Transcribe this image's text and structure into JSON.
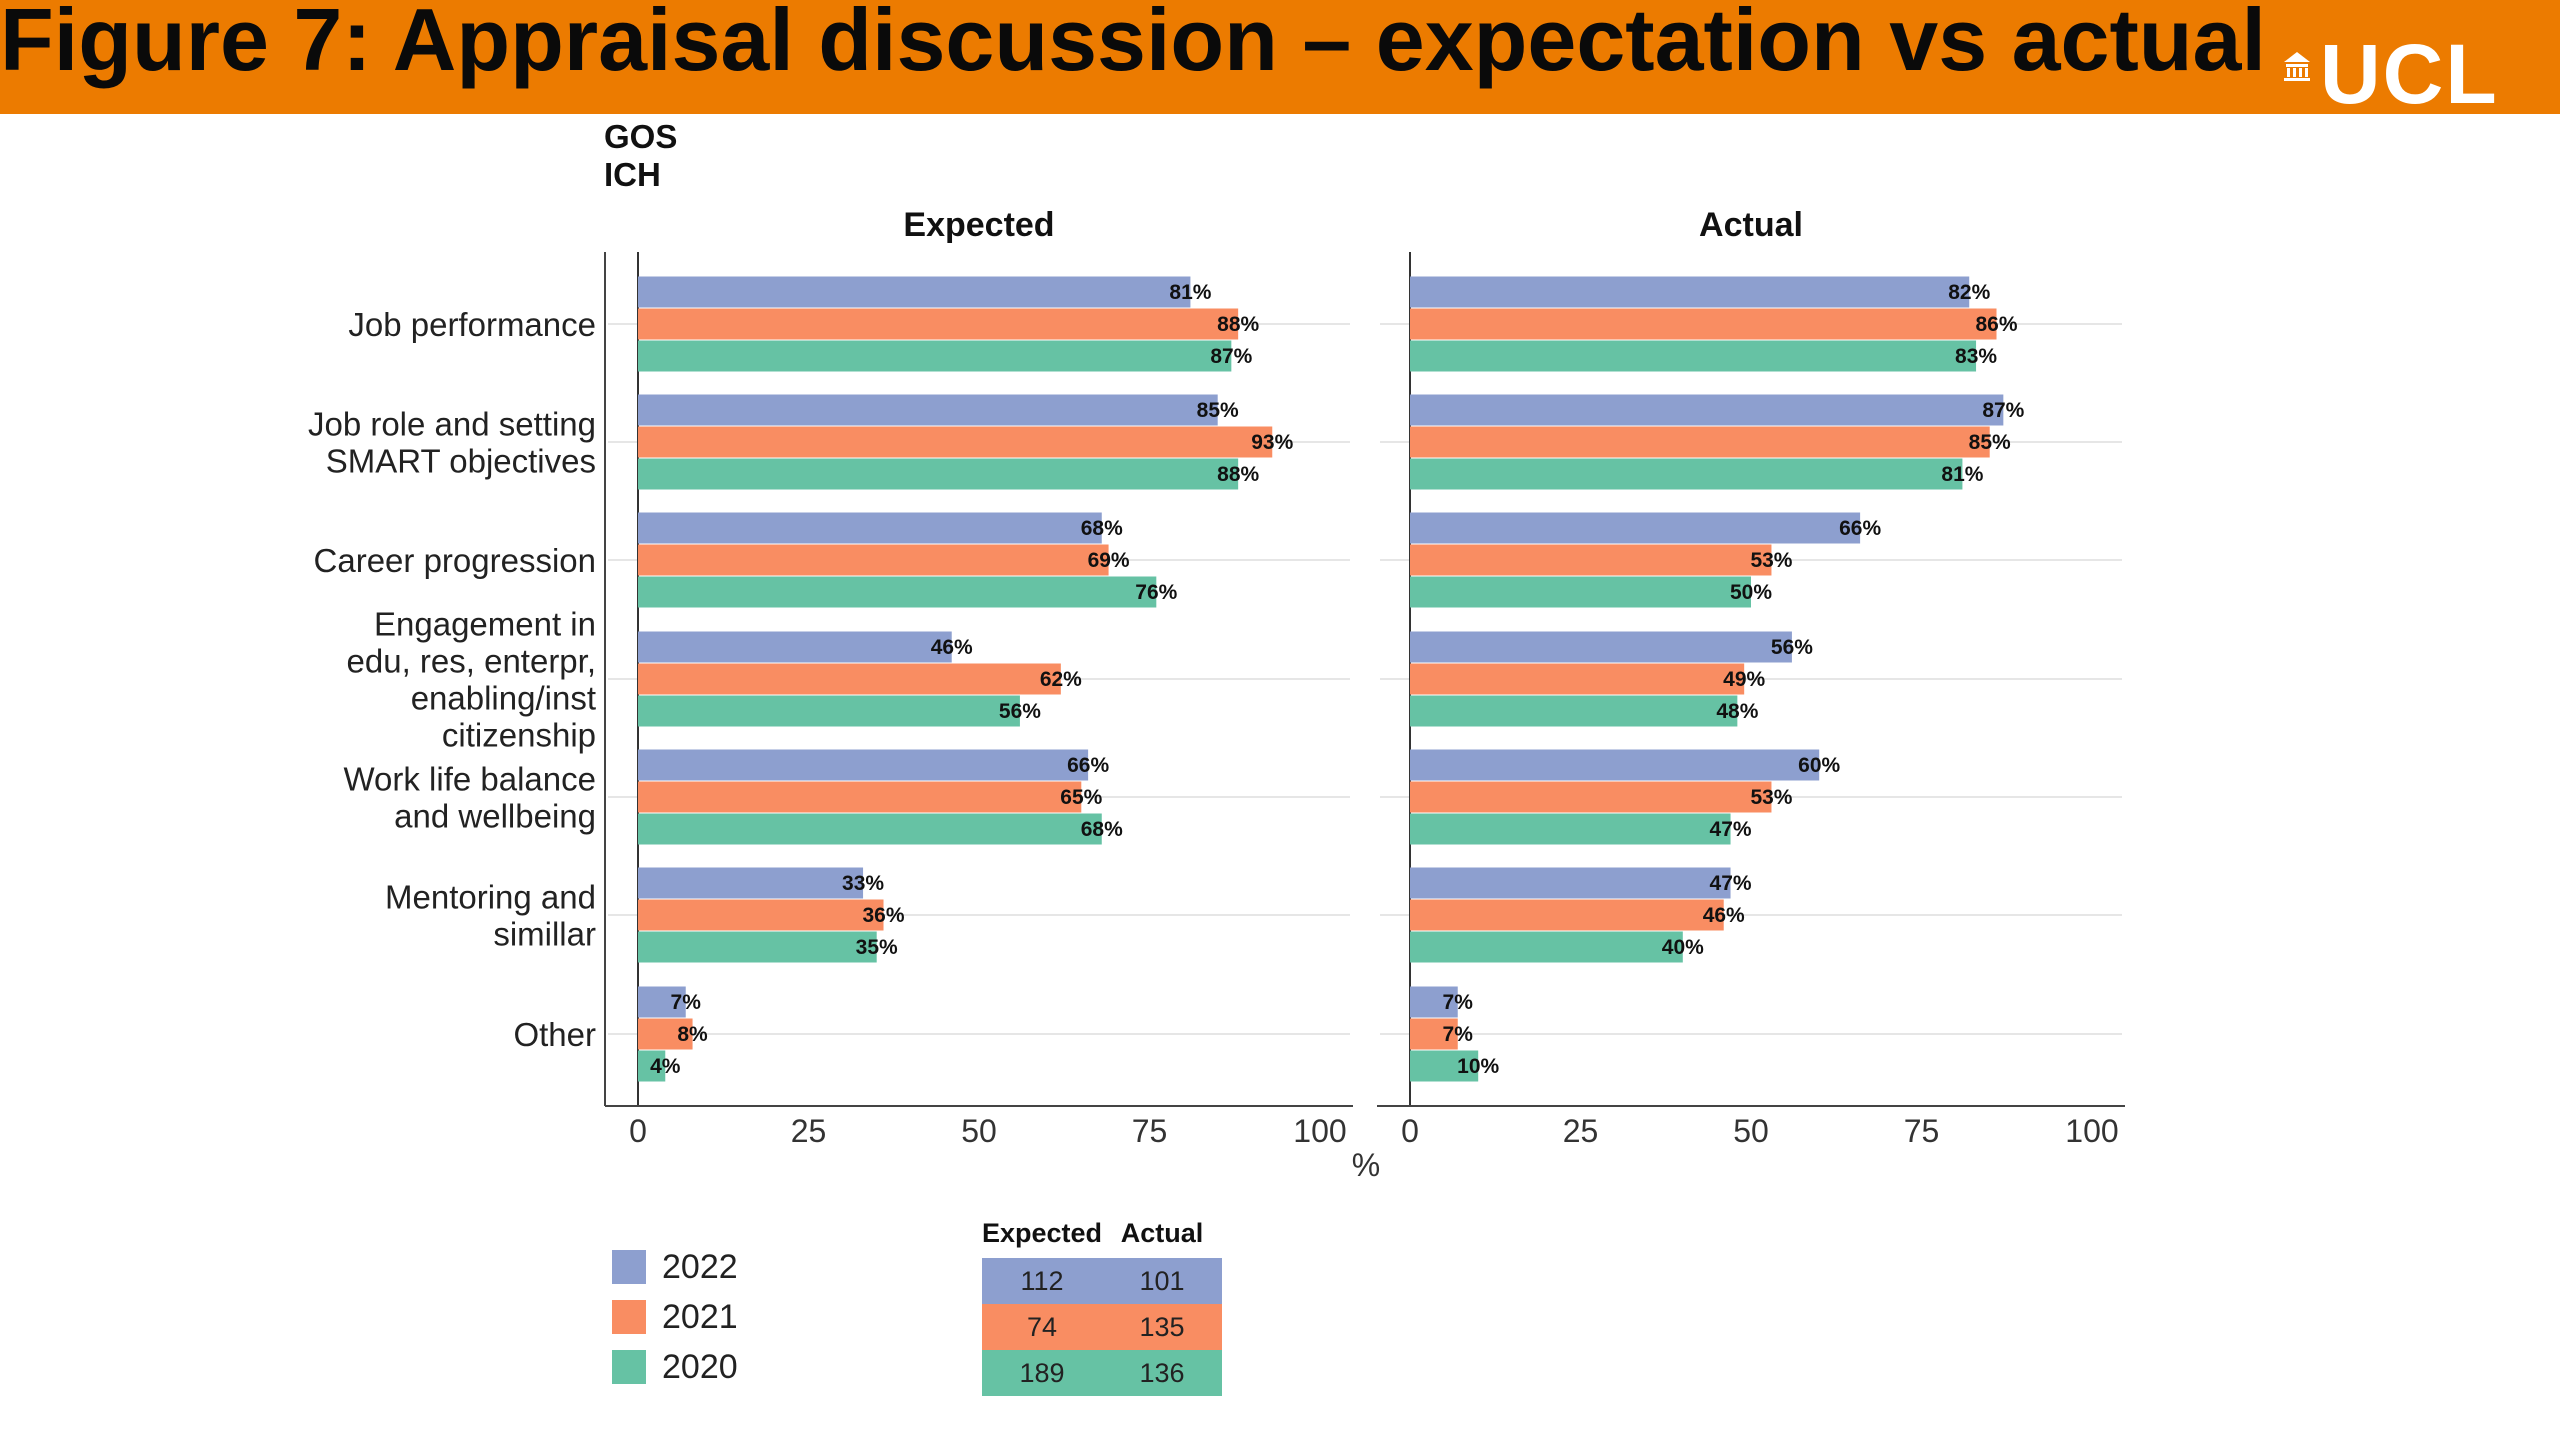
{
  "header": {
    "title": "Figure 7: Appraisal discussion – expectation vs actual",
    "logo_text": "UCL",
    "background": "#ec7b00"
  },
  "subgroup_label": [
    "GOS",
    "ICH"
  ],
  "chart_data": {
    "type": "bar",
    "orientation": "horizontal",
    "unit_label": "%",
    "categories": [
      "Job performance",
      "Job role and setting\nSMART objectives",
      "Career progression",
      "Engagement in\nedu, res, enterpr,\nenabling/inst\ncitizenship",
      "Work life balance\nand wellbeing",
      "Mentoring and\nsimillar",
      "Other"
    ],
    "xlim": [
      0,
      100
    ],
    "xticks": [
      0,
      25,
      50,
      75,
      100
    ],
    "grid": true,
    "legend_position": "bottom-left",
    "panels": [
      {
        "title": "Expected",
        "series": [
          {
            "name": "2022",
            "color": "#8d9fcf",
            "values": [
              81,
              85,
              68,
              46,
              66,
              33,
              7
            ]
          },
          {
            "name": "2021",
            "color": "#f98d62",
            "values": [
              88,
              93,
              69,
              62,
              65,
              36,
              8
            ]
          },
          {
            "name": "2020",
            "color": "#66c2a4",
            "values": [
              87,
              88,
              76,
              56,
              68,
              35,
              4
            ]
          }
        ]
      },
      {
        "title": "Actual",
        "series": [
          {
            "name": "2022",
            "color": "#8d9fcf",
            "values": [
              82,
              87,
              66,
              56,
              60,
              47,
              7
            ]
          },
          {
            "name": "2021",
            "color": "#f98d62",
            "values": [
              86,
              85,
              53,
              49,
              53,
              46,
              7
            ]
          },
          {
            "name": "2020",
            "color": "#66c2a4",
            "values": [
              83,
              81,
              50,
              48,
              47,
              40,
              10
            ]
          }
        ]
      }
    ]
  },
  "counts_table": {
    "headers": [
      "Expected",
      "Actual"
    ],
    "rows": [
      {
        "year": "2022",
        "color": "#8d9fcf",
        "expected": "112",
        "actual": "101"
      },
      {
        "year": "2021",
        "color": "#f98d62",
        "expected": "74",
        "actual": "135"
      },
      {
        "year": "2020",
        "color": "#66c2a4",
        "expected": "189",
        "actual": "136"
      }
    ]
  }
}
